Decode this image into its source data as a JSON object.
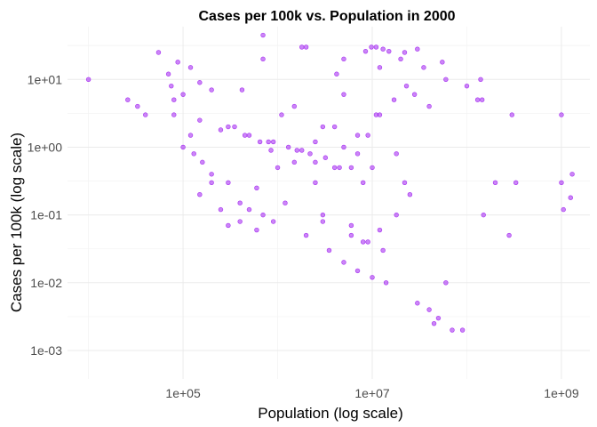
{
  "chart_data": {
    "type": "scatter",
    "title": "Cases per 100k vs. Population in 2000",
    "xlabel": "Population (log scale)",
    "ylabel": "Cases per 100k (log scale)",
    "x_scale": "log10",
    "y_scale": "log10",
    "xlim": [
      6000,
      2000000000
    ],
    "ylim": [
      0.00038,
      60
    ],
    "x_ticks": [
      {
        "value": 100000,
        "label": "1e+05"
      },
      {
        "value": 10000000,
        "label": "1e+07"
      },
      {
        "value": 1000000000,
        "label": "1e+09"
      }
    ],
    "y_ticks": [
      {
        "value": 10,
        "label": "1e+01"
      },
      {
        "value": 1,
        "label": "1e+00"
      },
      {
        "value": 0.1,
        "label": "1e-01"
      },
      {
        "value": 0.01,
        "label": "1e-02"
      },
      {
        "value": 0.001,
        "label": "1e-03"
      }
    ],
    "grid": true,
    "legend": "none",
    "point_color": "#A020F0",
    "point_opacity": 0.55,
    "x_values": [
      10000,
      26000,
      33000,
      40000,
      55000,
      70000,
      75000,
      80000,
      88000,
      120000,
      150000,
      200000,
      420000,
      700000,
      700000,
      1800000,
      2000000,
      4200000,
      5000000,
      8500000,
      9800000,
      11000000,
      12000000,
      13000000,
      15000000,
      20000000,
      22000000,
      30000000,
      35000000,
      55000000,
      60000000,
      100000000,
      130000000,
      140000000,
      145000000,
      150000000,
      200000000,
      300000000,
      330000000,
      1000000000,
      1000000000,
      1050000000,
      1250000000,
      1300000000,
      280000000,
      1500000,
      2500000,
      4000000,
      6000000,
      8000000,
      10000000,
      3000000,
      6000000,
      18000000,
      22000000,
      150000,
      300000,
      600000,
      1000000,
      1800000,
      2500000,
      4000000,
      5000000,
      7000000,
      9000000,
      12000000,
      160000,
      200000,
      300000,
      400000,
      500000,
      700000,
      900000,
      1200000,
      100000,
      130000,
      200000,
      600000,
      2000000,
      3500000,
      5000000,
      7000000,
      10000000,
      14000000,
      30000000,
      40000000,
      50000000,
      70000000,
      90000000,
      45000000,
      60000000,
      12000000,
      18000000,
      25000000,
      8000000,
      400000,
      250000,
      120000,
      800000,
      1100000,
      1500000,
      3000000,
      5000000,
      300000,
      450000,
      650000,
      850000,
      1600000,
      2200000,
      3200000,
      7000000,
      11000000,
      17000000,
      23000000,
      28000000,
      40000000,
      3000000,
      6000000,
      9000000,
      13000000,
      80000,
      100000,
      150000,
      250000,
      350000,
      500000,
      900000,
      1300000,
      2500000,
      4500000
    ],
    "y_values": [
      10,
      5,
      4,
      3,
      25,
      12,
      8,
      5,
      18,
      15,
      9,
      7,
      7,
      20,
      45,
      30,
      30,
      12,
      20,
      26,
      30,
      30,
      15,
      28,
      26,
      20,
      25,
      28,
      15,
      18,
      10,
      8,
      5,
      10,
      5,
      0.1,
      0.3,
      3,
      0.3,
      3,
      0.3,
      0.12,
      0.18,
      0.4,
      0.05,
      0.6,
      0.3,
      0.5,
      0.5,
      0.3,
      0.5,
      0.08,
      0.07,
      0.8,
      0.3,
      0.2,
      0.07,
      0.25,
      0.5,
      0.9,
      1.2,
      2,
      1,
      0.8,
      1.5,
      3,
      0.6,
      0.4,
      0.3,
      0.15,
      0.12,
      0.1,
      0.08,
      0.15,
      1,
      0.8,
      0.3,
      0.06,
      0.05,
      0.03,
      0.02,
      0.015,
      0.012,
      0.01,
      0.005,
      0.004,
      0.003,
      0.002,
      0.002,
      0.0025,
      0.01,
      0.06,
      0.1,
      0.2,
      0.04,
      0.08,
      0.12,
      1.5,
      1.2,
      3,
      4,
      2,
      6,
      2,
      1.5,
      1.2,
      0.9,
      0.9,
      0.8,
      0.7,
      1.5,
      3,
      5,
      8,
      6,
      4,
      0.1,
      0.05,
      0.04,
      0.03,
      3,
      6,
      2.5,
      1.8,
      2,
      1.5,
      1.2,
      1,
      0.6,
      0.5
    ],
    "approximate": true
  }
}
